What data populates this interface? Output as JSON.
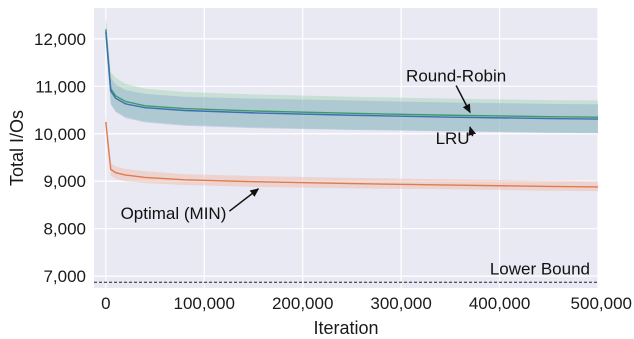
{
  "chart_data": {
    "type": "line",
    "xlabel": "Iteration",
    "ylabel": "Total I/Os",
    "xlim": [
      -12000,
      500000
    ],
    "ylim": [
      6750,
      12650
    ],
    "grid": true,
    "x_ticks": [
      0,
      100000,
      200000,
      300000,
      400000,
      500000
    ],
    "x_tick_labels": [
      "0",
      "100,000",
      "200,000",
      "300,000",
      "400,000",
      "500,000"
    ],
    "y_ticks": [
      7000,
      8000,
      9000,
      10000,
      11000,
      12000
    ],
    "y_tick_labels": [
      "7,000",
      "8,000",
      "9,000",
      "10,000",
      "11,000",
      "12,000"
    ],
    "series": [
      {
        "name": "Round-Robin",
        "color": "#3d9a6d",
        "band_color": "#9fd3b2",
        "x": [
          0,
          5000,
          10000,
          20000,
          40000,
          80000,
          150000,
          250000,
          350000,
          450000,
          500000
        ],
        "y": [
          12200,
          10950,
          10800,
          10680,
          10590,
          10530,
          10480,
          10430,
          10390,
          10360,
          10350
        ],
        "y_lower": [
          11950,
          10650,
          10480,
          10360,
          10260,
          10190,
          10140,
          10090,
          10060,
          10030,
          10020
        ],
        "y_upper": [
          12450,
          11300,
          11180,
          11050,
          10950,
          10880,
          10830,
          10780,
          10740,
          10710,
          10700
        ]
      },
      {
        "name": "LRU",
        "color": "#3e6fb0",
        "band_color": "#8fb0cf",
        "x": [
          0,
          5000,
          10000,
          20000,
          40000,
          80000,
          150000,
          250000,
          350000,
          450000,
          500000
        ],
        "y": [
          12150,
          10900,
          10750,
          10630,
          10550,
          10490,
          10440,
          10390,
          10350,
          10320,
          10310
        ],
        "y_lower": [
          11900,
          10620,
          10460,
          10330,
          10240,
          10170,
          10120,
          10080,
          10050,
          10020,
          10010
        ],
        "y_upper": [
          12400,
          11180,
          11040,
          10920,
          10840,
          10780,
          10740,
          10700,
          10660,
          10630,
          10620
        ]
      },
      {
        "name": "Optimal (MIN)",
        "color": "#e07b4f",
        "band_color": "#f0b9a3",
        "x": [
          0,
          5000,
          10000,
          20000,
          40000,
          80000,
          150000,
          250000,
          350000,
          450000,
          500000
        ],
        "y": [
          10250,
          9250,
          9180,
          9130,
          9080,
          9030,
          8990,
          8950,
          8920,
          8890,
          8880
        ],
        "y_lower": [
          10100,
          9120,
          9050,
          9000,
          8960,
          8920,
          8880,
          8850,
          8830,
          8800,
          8790
        ],
        "y_upper": [
          10400,
          9380,
          9310,
          9260,
          9210,
          9150,
          9110,
          9070,
          9040,
          9010,
          9000
        ]
      }
    ],
    "reference_line": {
      "label": "Lower Bound",
      "y": 6870,
      "style": "dashed",
      "color": "#222222"
    },
    "annotations": [
      {
        "text": "Round-Robin",
        "text_x": 305000,
        "text_y": 11100,
        "arrow_x": 370000,
        "arrow_y": 10450
      },
      {
        "text": "LRU",
        "text_x": 335000,
        "text_y": 9780,
        "arrow_x": 370000,
        "arrow_y": 10140
      },
      {
        "text": "Optimal (MIN)",
        "text_x": 15000,
        "text_y": 8200,
        "arrow_x": 155000,
        "arrow_y": 8840
      }
    ],
    "colors": {
      "plot_background": "#e9e9f3",
      "grid": "#ffffff"
    }
  }
}
